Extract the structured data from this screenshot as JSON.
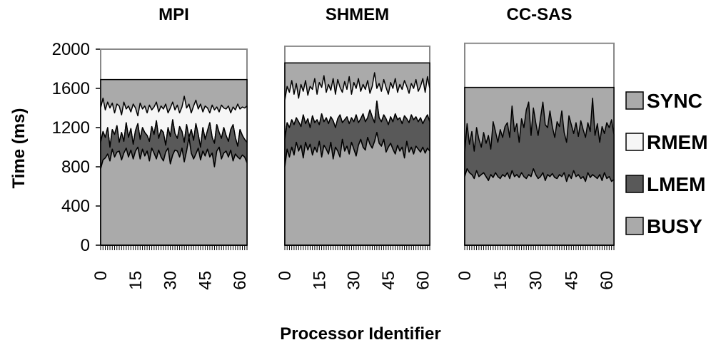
{
  "chart_data": {
    "type": "area",
    "xlabel": "Processor Identifier",
    "ylabel": "Time (ms)",
    "ylim": [
      0,
      2000
    ],
    "yticks": [
      0,
      400,
      800,
      1200,
      1600,
      2000
    ],
    "xticks": [
      0,
      15,
      30,
      45,
      60
    ],
    "legend": {
      "position": "right",
      "entries": [
        {
          "name": "SYNC",
          "color": "#aaaaaa"
        },
        {
          "name": "RMEM",
          "color": "#f6f6f6"
        },
        {
          "name": "LMEM",
          "color": "#595959"
        },
        {
          "name": "BUSY",
          "color": "#aaaaaa"
        }
      ]
    },
    "panels": [
      {
        "title": "MPI",
        "total_frame": 2000,
        "total": 1690,
        "busy": [
          780,
          870,
          890,
          930,
          860,
          980,
          900,
          950,
          960,
          870,
          940,
          990,
          900,
          970,
          880,
          960,
          1000,
          880,
          980,
          910,
          960,
          860,
          990,
          940,
          880,
          970,
          900,
          860,
          950,
          990,
          830,
          920,
          970,
          960,
          900,
          990,
          850,
          960,
          1100,
          940,
          880,
          930,
          990,
          870,
          960,
          910,
          980,
          900,
          940,
          800,
          960,
          1000,
          880,
          940,
          960,
          900,
          970,
          860,
          930,
          900,
          880,
          920,
          900,
          840
        ],
        "lmem_top": [
          1050,
          1160,
          1100,
          1200,
          1000,
          1180,
          1130,
          1220,
          1050,
          1150,
          1060,
          1250,
          1100,
          1190,
          1030,
          1170,
          1240,
          1080,
          1200,
          1150,
          1120,
          1060,
          1210,
          1130,
          1270,
          1090,
          1180,
          1150,
          1020,
          1200,
          1110,
          1280,
          1140,
          1090,
          1210,
          1160,
          1050,
          1230,
          1100,
          1180,
          1070,
          1240,
          1130,
          1000,
          1200,
          1080,
          1170,
          1250,
          1100,
          1040,
          1230,
          1150,
          1090,
          1200,
          1120,
          1060,
          1180,
          1230,
          1100,
          1010,
          1180,
          1120,
          1080,
          1050
        ],
        "rmem_top": [
          1400,
          1500,
          1380,
          1460,
          1400,
          1450,
          1350,
          1440,
          1420,
          1330,
          1460,
          1390,
          1420,
          1360,
          1440,
          1400,
          1320,
          1450,
          1390,
          1420,
          1350,
          1430,
          1380,
          1410,
          1460,
          1360,
          1420,
          1390,
          1440,
          1350,
          1400,
          1460,
          1380,
          1430,
          1350,
          1410,
          1520,
          1400,
          1440,
          1350,
          1420,
          1480,
          1390,
          1440,
          1360,
          1420,
          1400,
          1350,
          1430,
          1380,
          1410,
          1360,
          1430,
          1400,
          1390,
          1420,
          1350,
          1410,
          1380,
          1440,
          1390,
          1410,
          1400,
          1420
        ]
      },
      {
        "title": "SHMEM",
        "total_frame": 2030,
        "total": 1860,
        "busy": [
          800,
          980,
          900,
          1000,
          920,
          1050,
          960,
          1020,
          890,
          1050,
          970,
          1030,
          920,
          1000,
          950,
          1060,
          900,
          1020,
          980,
          930,
          1050,
          880,
          1000,
          960,
          900,
          1080,
          960,
          1010,
          930,
          1050,
          980,
          910,
          1020,
          1080,
          1000,
          970,
          1100,
          1030,
          990,
          1060,
          1150,
          1040,
          1010,
          1080,
          950,
          1000,
          1040,
          980,
          930,
          1020,
          960,
          1000,
          890,
          1060,
          950,
          1000,
          930,
          1010,
          980,
          950,
          1000,
          940,
          990,
          960
        ],
        "lmem_top": [
          1080,
          1250,
          1200,
          1280,
          1230,
          1300,
          1260,
          1210,
          1330,
          1240,
          1290,
          1200,
          1320,
          1250,
          1280,
          1230,
          1340,
          1260,
          1300,
          1240,
          1310,
          1270,
          1200,
          1290,
          1330,
          1250,
          1280,
          1310,
          1240,
          1300,
          1260,
          1330,
          1250,
          1290,
          1340,
          1260,
          1300,
          1380,
          1310,
          1250,
          1470,
          1300,
          1260,
          1330,
          1290,
          1230,
          1310,
          1260,
          1340,
          1280,
          1300,
          1240,
          1320,
          1290,
          1250,
          1330,
          1280,
          1310,
          1260,
          1300,
          1240,
          1290,
          1330,
          1260
        ],
        "rmem_top": [
          1480,
          1620,
          1560,
          1680,
          1540,
          1650,
          1500,
          1640,
          1570,
          1680,
          1530,
          1620,
          1590,
          1700,
          1540,
          1660,
          1610,
          1730,
          1560,
          1640,
          1580,
          1700,
          1540,
          1690,
          1610,
          1560,
          1670,
          1590,
          1720,
          1540,
          1660,
          1600,
          1700,
          1570,
          1640,
          1590,
          1680,
          1550,
          1620,
          1760,
          1600,
          1650,
          1570,
          1690,
          1610,
          1540,
          1660,
          1600,
          1700,
          1560,
          1640,
          1590,
          1680,
          1620,
          1550,
          1650,
          1600,
          1690,
          1570,
          1620,
          1700,
          1560,
          1720,
          1600
        ]
      },
      {
        "title": "CC-SAS",
        "total_frame": 2060,
        "total": 1610,
        "busy": [
          700,
          780,
          740,
          720,
          680,
          760,
          700,
          720,
          740,
          700,
          660,
          720,
          690,
          740,
          700,
          680,
          720,
          700,
          740,
          680,
          760,
          700,
          720,
          690,
          740,
          700,
          680,
          720,
          700,
          780,
          720,
          680,
          700,
          740,
          660,
          720,
          700,
          730,
          690,
          680,
          720,
          700,
          740,
          650,
          720,
          680,
          760,
          700,
          720,
          680,
          700,
          650,
          740,
          690,
          720,
          700,
          680,
          720,
          660,
          740,
          680,
          700,
          650,
          670
        ],
        "lmem_top": [
          950,
          1240,
          1030,
          1160,
          960,
          1200,
          1080,
          1000,
          1150,
          1040,
          1120,
          980,
          1260,
          1160,
          1050,
          1180,
          1100,
          1210,
          1250,
          1100,
          1420,
          1160,
          1240,
          1050,
          1290,
          1200,
          1380,
          1460,
          1120,
          1400,
          1250,
          1120,
          1300,
          1460,
          1230,
          1200,
          1370,
          1210,
          1100,
          1260,
          1210,
          1370,
          1150,
          1050,
          1320,
          1230,
          1140,
          1250,
          1110,
          1270,
          1180,
          1100,
          1250,
          1160,
          1500,
          1120,
          1240,
          1050,
          1210,
          1140,
          1250,
          1200,
          1280,
          1130
        ]
      }
    ]
  }
}
